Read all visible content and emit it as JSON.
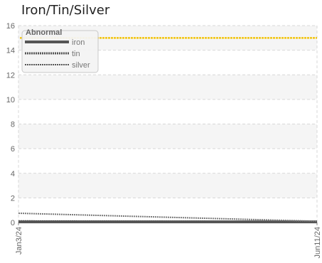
{
  "chart_data": {
    "type": "line",
    "title": "Iron/Tin/Silver",
    "xlabel": "",
    "ylabel": "",
    "x_ticks": [
      "Jan3/24",
      "Jun11/24"
    ],
    "x_range": [
      "2024-01-03",
      "2024-06-11"
    ],
    "ylim": [
      0,
      16
    ],
    "y_ticks": [
      0,
      2,
      4,
      6,
      8,
      10,
      12,
      14,
      16
    ],
    "grid": true,
    "legend": {
      "title": "Abnormal",
      "placement": "top-left",
      "entries": [
        "iron",
        "tin",
        "silver"
      ]
    },
    "reference_line": {
      "value": 15,
      "color": "#f2c40f"
    },
    "series": [
      {
        "name": "iron",
        "color": "#555555",
        "x": [
          "2024-01-03",
          "2024-06-11"
        ],
        "y": [
          0.05,
          0.05
        ]
      },
      {
        "name": "tin",
        "color": "#555555",
        "x": [
          "2024-01-03",
          "2024-06-11"
        ],
        "y": [
          0.1,
          0.05
        ]
      },
      {
        "name": "silver",
        "color": "#777777",
        "x": [
          "2024-01-03",
          "2024-06-11"
        ],
        "y": [
          0.75,
          0.1
        ]
      }
    ]
  }
}
